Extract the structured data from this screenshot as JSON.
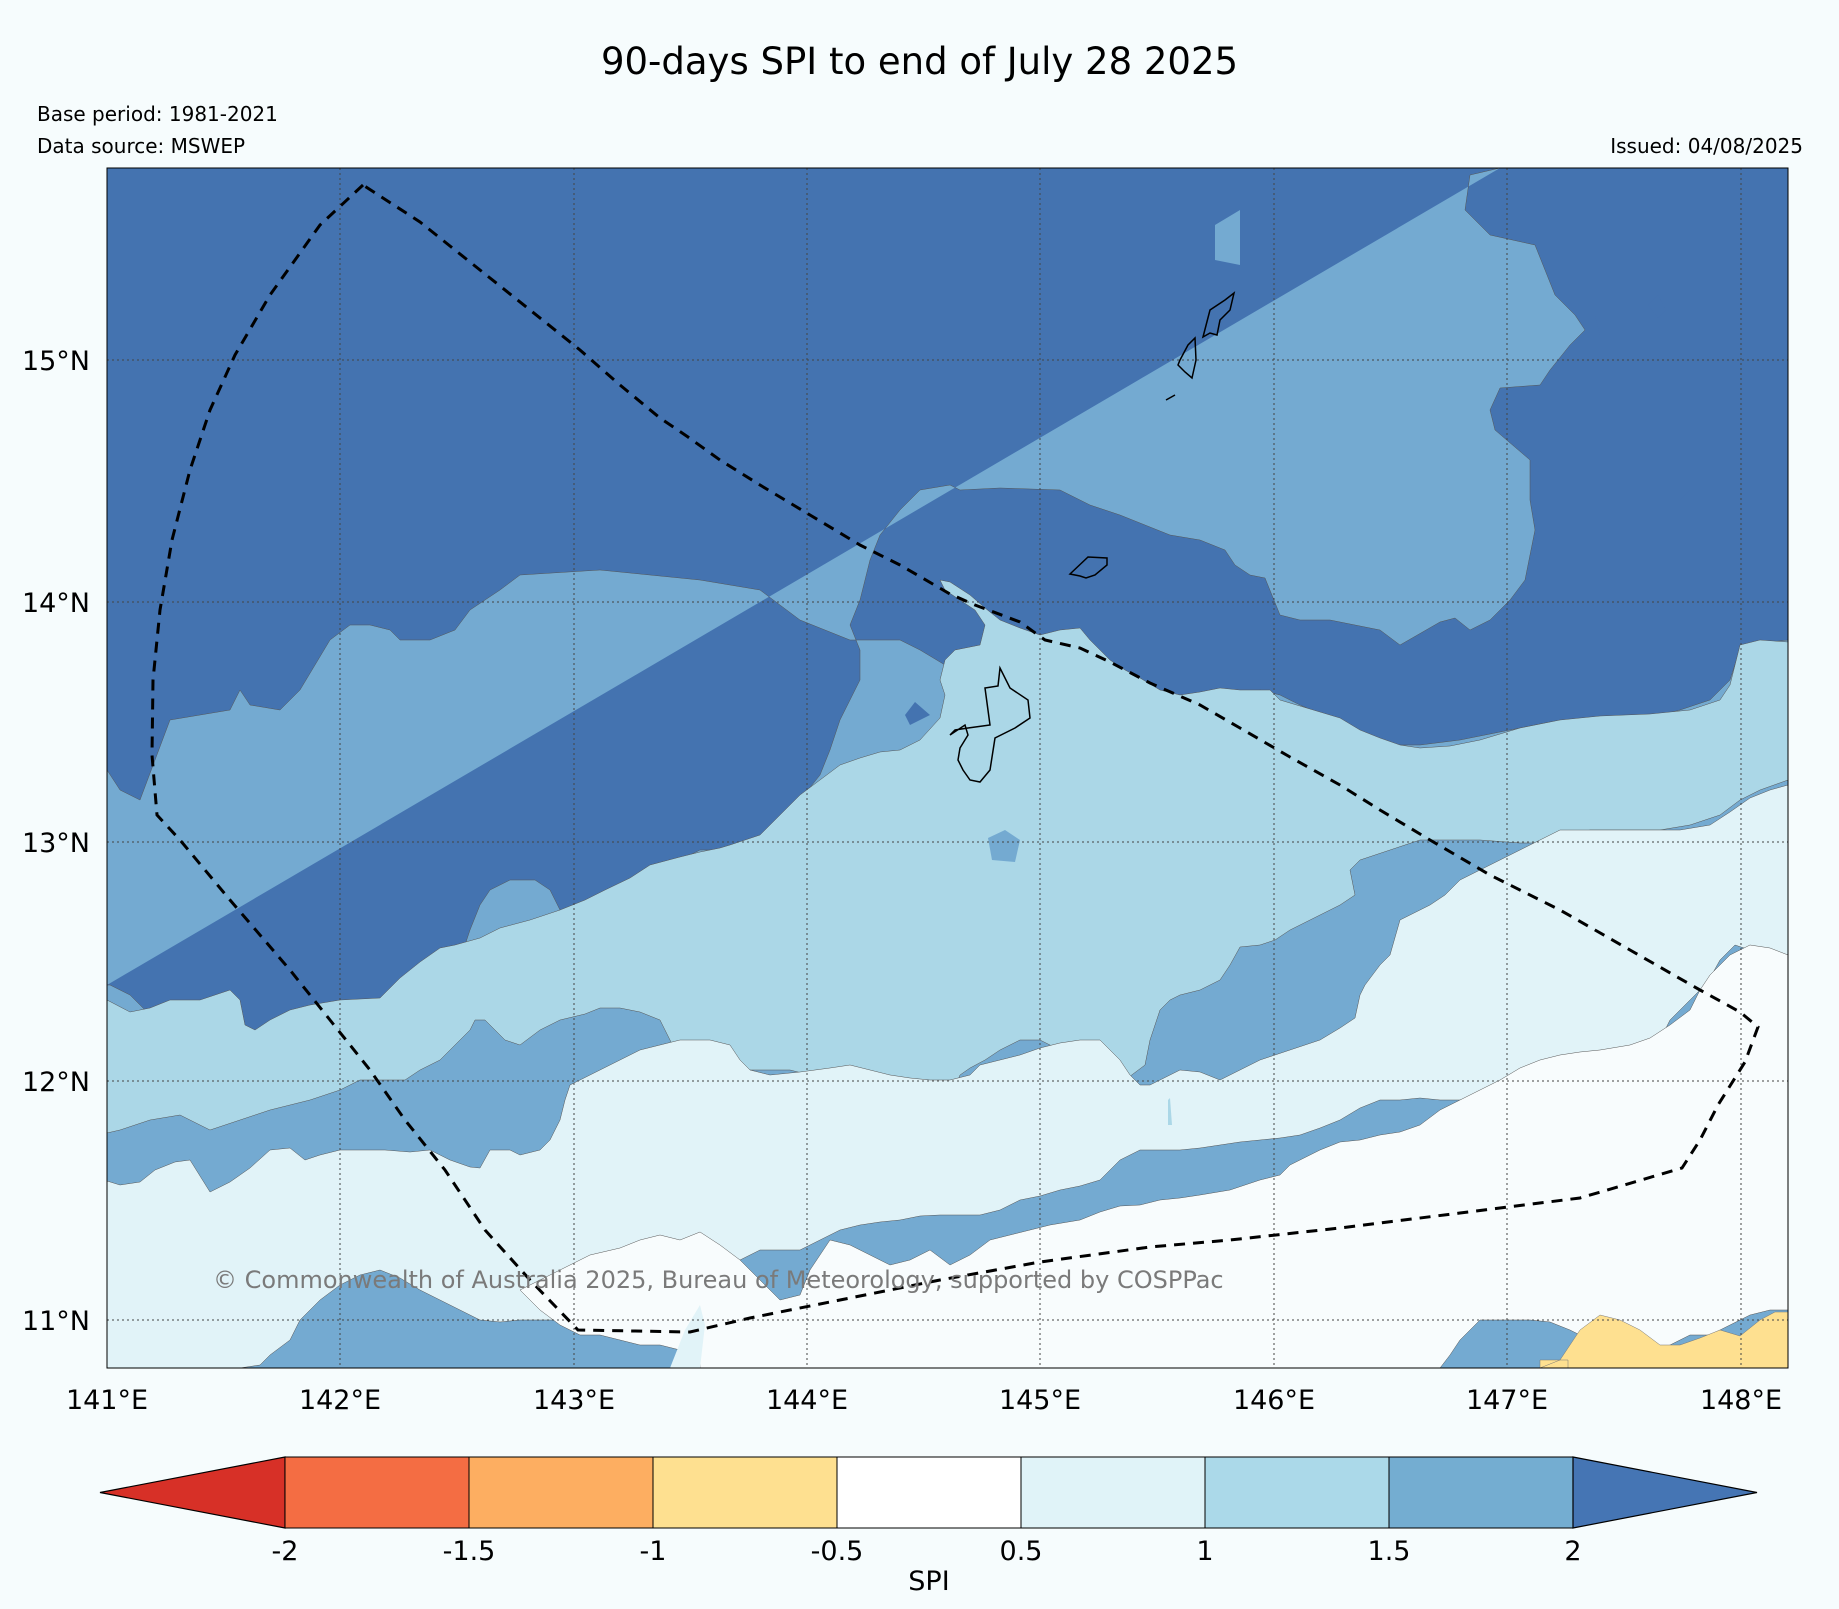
{
  "title": "90-days SPI to end of July 28 2025",
  "base_period": "Base period: 1981-2021",
  "data_source": "Data source: MSWEP",
  "issued": "Issued: 04/08/2025",
  "copyright": "© Commonwealth of Australia 2025, Bureau of Meteorology, supported by COSPPac",
  "map": {
    "lon_labels": [
      "141°E",
      "142°E",
      "143°E",
      "144°E",
      "145°E",
      "146°E",
      "147°E",
      "148°E"
    ],
    "lat_labels": [
      "15°N",
      "14°N",
      "13°N",
      "12°N",
      "11°N"
    ],
    "fill_colors": {
      "spi_above_2": "#4473b0",
      "spi_1_5_to_2": "#74aad1",
      "spi_1_to_1_5": "#abd7e7",
      "spi_0_5_to_1": "#e1f3f8",
      "spi_neg0_5_to_0_5": "#f8fcfd",
      "spi_neg1_to_neg0_5": "#fee090"
    }
  },
  "colorbar": {
    "label": "SPI",
    "ticks": [
      "-2",
      "-1.5",
      "-1",
      "-0.5",
      "0.5",
      "1",
      "1.5",
      "2"
    ],
    "colors": [
      "#d73027",
      "#f46d43",
      "#fdae61",
      "#fee090",
      "#ffffff",
      "#e0f3f8",
      "#abd9e9",
      "#74add1",
      "#4575b4"
    ]
  }
}
